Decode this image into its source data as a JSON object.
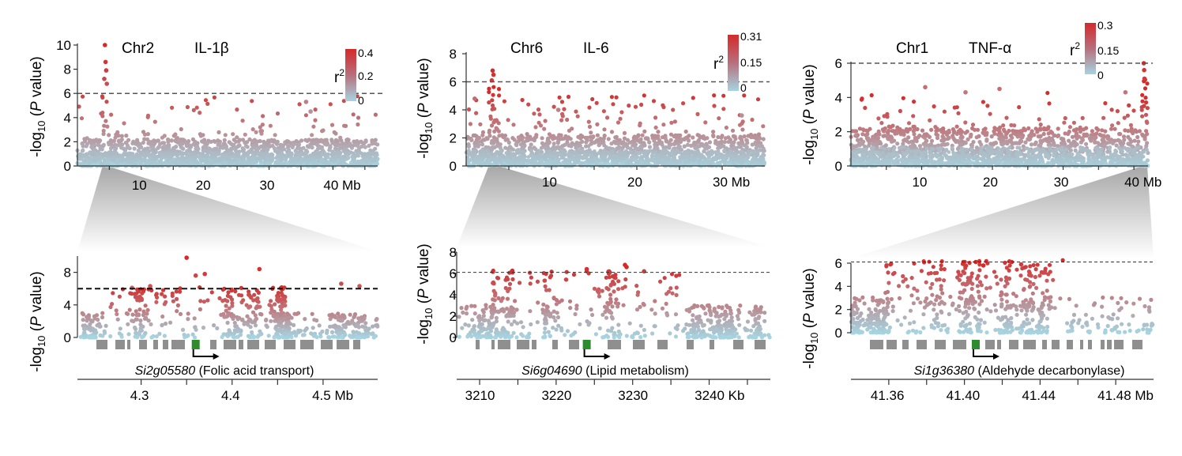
{
  "colors": {
    "high_r2": "#d42a2a",
    "low_r2": "#a6d4e0",
    "gene_box": "#8f8f8f",
    "candidate_gene": "#2e8b2e",
    "threshold_line": "#555555"
  },
  "chart_data": [
    {
      "type": "scatter",
      "chromosome": "Chr2",
      "trait": "IL-1β",
      "ylabel": "-log10 (P value)",
      "ylabel_parts": [
        "-log",
        "10",
        " (",
        "P",
        " value)"
      ],
      "ylim": [
        0,
        10
      ],
      "yticks": [
        "0",
        "2",
        "4",
        "6",
        "8",
        "10"
      ],
      "xlim": [
        0,
        47
      ],
      "xticks": [
        {
          "value": 10,
          "label": "10"
        },
        {
          "value": 20,
          "label": "20"
        },
        {
          "value": 30,
          "label": "30"
        },
        {
          "value": 40,
          "label": "40 Mb"
        }
      ],
      "threshold": 6,
      "colorbar": {
        "label_base": "r",
        "label_sup": "2",
        "max": "0.4",
        "mid": "0.2",
        "min": "0"
      },
      "peaks": [
        {
          "x": 4.3,
          "y": 10,
          "r2": 1.0
        },
        {
          "x": 4.4,
          "y": 8.6,
          "r2": 0.95
        },
        {
          "x": 4.5,
          "y": 7.9,
          "r2": 0.9
        },
        {
          "x": 4.2,
          "y": 7.2,
          "r2": 0.85
        },
        {
          "x": 4.6,
          "y": 6.8,
          "r2": 0.8
        },
        {
          "x": 35.8,
          "y": 5.3,
          "r2": 0.5
        },
        {
          "x": 36.5,
          "y": 4.5,
          "r2": 0.4
        }
      ],
      "zoom": {
        "region": [
          3.9,
          5.0
        ],
        "ylim": [
          0,
          10
        ],
        "yticks": [
          "0",
          "4",
          "8"
        ],
        "threshold": 6,
        "xlim": [
          4.23,
          4.56
        ],
        "xticks": [
          {
            "value": 4.3,
            "label": "4.3"
          },
          {
            "value": 4.4,
            "label": "4.4"
          },
          {
            "value": 4.5,
            "label": "4.5 Mb"
          }
        ],
        "minor_ticks": [
          4.35,
          4.45
        ],
        "gene_id": "Si2g05580",
        "gene_desc": " (Folic acid transport)",
        "candidate_x": 4.36,
        "points": [
          {
            "x": 4.35,
            "y": 9.8,
            "r2": 1.0
          },
          {
            "x": 4.43,
            "y": 8.4,
            "r2": 0.95
          },
          {
            "x": 4.37,
            "y": 7.8,
            "r2": 0.9
          },
          {
            "x": 4.36,
            "y": 7.6,
            "r2": 0.85
          },
          {
            "x": 4.52,
            "y": 6.6,
            "r2": 0.8
          },
          {
            "x": 4.54,
            "y": 6.3,
            "r2": 0.75
          },
          {
            "x": 4.31,
            "y": 6.3,
            "r2": 0.75
          },
          {
            "x": 4.29,
            "y": 6.1,
            "r2": 0.7
          }
        ]
      }
    },
    {
      "type": "scatter",
      "chromosome": "Chr6",
      "trait": "IL-6",
      "ylabel": "-log10 (P value)",
      "ylabel_parts": [
        "-log",
        "10",
        " (",
        "P",
        " value)"
      ],
      "ylim": [
        0,
        8
      ],
      "yticks": [
        "0",
        "2",
        "4",
        "6",
        "8"
      ],
      "xlim": [
        0,
        35
      ],
      "xticks": [
        {
          "value": 10,
          "label": "10"
        },
        {
          "value": 20,
          "label": "20"
        },
        {
          "value": 30,
          "label": "30 Mb"
        }
      ],
      "threshold": 6,
      "colorbar": {
        "label_base": "r",
        "label_sup": "2",
        "max": "0.31",
        "mid": "0.15",
        "min": "0"
      },
      "peaks": [
        {
          "x": 3.1,
          "y": 6.8,
          "r2": 1.0
        },
        {
          "x": 3.2,
          "y": 6.5,
          "r2": 0.95
        },
        {
          "x": 3.0,
          "y": 6.1,
          "r2": 0.9
        },
        {
          "x": 1.0,
          "y": 4.8,
          "r2": 0.6
        },
        {
          "x": 10.8,
          "y": 4.0,
          "r2": 0.5
        },
        {
          "x": 32.3,
          "y": 3.6,
          "r2": 0.4
        }
      ],
      "zoom": {
        "region": [
          2.6,
          4.1
        ],
        "ylim": [
          0,
          8
        ],
        "yticks": [
          "0",
          "2",
          "4",
          "6",
          "8"
        ],
        "threshold": 6.1,
        "xlim": [
          3207,
          3248
        ],
        "xticks": [
          {
            "value": 3210,
            "label": "3210"
          },
          {
            "value": 3220,
            "label": "3220"
          },
          {
            "value": 3230,
            "label": "3230"
          },
          {
            "value": 3240,
            "label": "3240 Kb"
          }
        ],
        "minor_ticks": [
          3215,
          3225,
          3235,
          3245
        ],
        "gene_id": "Si6g04690",
        "gene_desc": " (Lipid metabolism)",
        "candidate_x": 3224,
        "points": [
          {
            "x": 3229,
            "y": 6.8,
            "r2": 1.0
          },
          {
            "x": 3229.2,
            "y": 6.6,
            "r2": 1.0
          },
          {
            "x": 3224,
            "y": 6.4,
            "r2": 0.95
          },
          {
            "x": 3227,
            "y": 6.1,
            "r2": 0.9
          },
          {
            "x": 3231.5,
            "y": 6.2,
            "r2": 0.9
          }
        ]
      }
    },
    {
      "type": "scatter",
      "chromosome": "Chr1",
      "trait": "TNF-α",
      "ylabel": "-log10 (P value)",
      "ylabel_parts": [
        "-log",
        "10",
        " (",
        "P",
        " value)"
      ],
      "ylim": [
        0,
        6
      ],
      "yticks": [
        "0",
        "2",
        "4",
        "6"
      ],
      "xlim": [
        0,
        42
      ],
      "xticks": [
        {
          "value": 10,
          "label": "10"
        },
        {
          "value": 20,
          "label": "20"
        },
        {
          "value": 30,
          "label": "30"
        },
        {
          "value": 40,
          "label": "40 Mb"
        }
      ],
      "threshold": 6,
      "colorbar": {
        "label_base": "r",
        "label_sup": "2",
        "max": "0.3",
        "mid": "0.15",
        "min": "0"
      },
      "peaks": [
        {
          "x": 41.4,
          "y": 6.0,
          "r2": 1.0
        },
        {
          "x": 41.45,
          "y": 5.6,
          "r2": 0.95
        },
        {
          "x": 41.5,
          "y": 5.1,
          "r2": 0.9
        },
        {
          "x": 10.5,
          "y": 4.6,
          "r2": 0.6
        },
        {
          "x": 21.0,
          "y": 4.5,
          "r2": 0.6
        },
        {
          "x": 16.2,
          "y": 4.3,
          "r2": 0.55
        },
        {
          "x": 38.8,
          "y": 4.3,
          "r2": 0.55
        }
      ],
      "zoom": {
        "region": [
          40.9,
          41.9
        ],
        "ylim": [
          0,
          6
        ],
        "yticks": [
          "0",
          "2",
          "4",
          "6"
        ],
        "threshold": 6.1,
        "xlim": [
          41.34,
          41.5
        ],
        "xticks": [
          {
            "value": 41.36,
            "label": "41.36"
          },
          {
            "value": 41.4,
            "label": "41.40"
          },
          {
            "value": 41.44,
            "label": "41.44"
          },
          {
            "value": 41.48,
            "label": "41.48 Mb"
          }
        ],
        "minor_ticks": [
          41.38,
          41.42,
          41.46
        ],
        "gene_id": "Si1g36380",
        "gene_desc": " (Aldehyde decarbonylase)",
        "candidate_x": 41.406,
        "points": [
          {
            "x": 41.406,
            "y": 6.1,
            "r2": 1.0
          },
          {
            "x": 41.41,
            "y": 5.8,
            "r2": 1.0
          },
          {
            "x": 41.425,
            "y": 6.1,
            "r2": 0.95
          },
          {
            "x": 41.43,
            "y": 5.9,
            "r2": 0.9
          }
        ]
      }
    }
  ]
}
